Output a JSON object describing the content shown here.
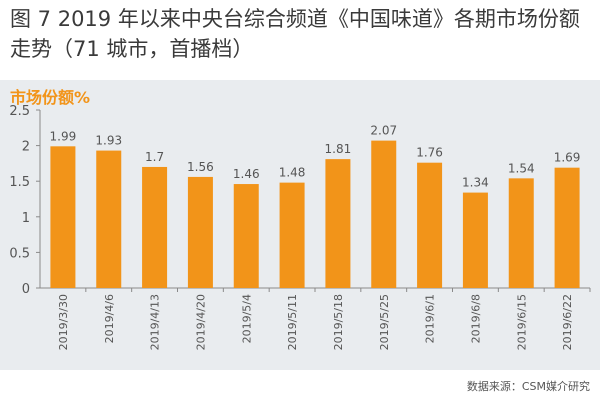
{
  "title": "图 7 2019 年以来中央台综合频道《中国味道》各期市场份额走势（71 城市，首播档）",
  "chart_data": {
    "type": "bar",
    "ylabel": "市场份额%",
    "categories": [
      "2019/3/30",
      "2019/4/6",
      "2019/4/13",
      "2019/4/20",
      "2019/5/4",
      "2019/5/11",
      "2019/5/18",
      "2019/5/25",
      "2019/6/1",
      "2019/6/8",
      "2019/6/15",
      "2019/6/22"
    ],
    "values": [
      1.99,
      1.93,
      1.7,
      1.56,
      1.46,
      1.48,
      1.81,
      2.07,
      1.76,
      1.34,
      1.54,
      1.69
    ],
    "ylim": [
      0,
      2.5
    ],
    "yticks": [
      "0",
      "0.5",
      "1",
      "1.5",
      "2",
      "2.5"
    ],
    "grid": false,
    "bar_color": "#f29419"
  },
  "source": "数据来源：CSM媒介研究"
}
